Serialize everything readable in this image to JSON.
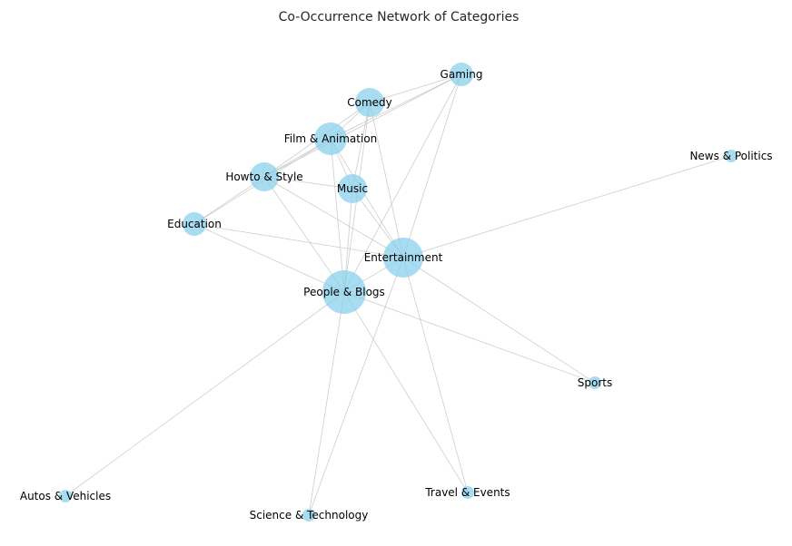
{
  "title": "Co-Occurrence Network of Categories",
  "colors": {
    "node": "#87ceeb",
    "edge": "#bdbdbd",
    "label": "#000000",
    "title": "#262626"
  },
  "chart_data": {
    "type": "network",
    "title": "Co-Occurrence Network of Categories",
    "nodes": [
      {
        "id": "gaming",
        "label": "Gaming",
        "size": 1
      },
      {
        "id": "comedy",
        "label": "Comedy",
        "size": 2
      },
      {
        "id": "film",
        "label": "Film & Animation",
        "size": 3
      },
      {
        "id": "news",
        "label": "News & Politics",
        "size": 0
      },
      {
        "id": "howto",
        "label": "Howto & Style",
        "size": 2
      },
      {
        "id": "music",
        "label": "Music",
        "size": 2
      },
      {
        "id": "education",
        "label": "Education",
        "size": 1
      },
      {
        "id": "entertainment",
        "label": "Entertainment",
        "size": 4
      },
      {
        "id": "people",
        "label": "People & Blogs",
        "size": 5
      },
      {
        "id": "sports",
        "label": "Sports",
        "size": 0
      },
      {
        "id": "autos",
        "label": "Autos & Vehicles",
        "size": 0
      },
      {
        "id": "travel",
        "label": "Travel & Events",
        "size": 0
      },
      {
        "id": "science",
        "label": "Science & Technology",
        "size": 0
      }
    ],
    "edges": [
      [
        "gaming",
        "comedy"
      ],
      [
        "gaming",
        "film"
      ],
      [
        "gaming",
        "howto"
      ],
      [
        "gaming",
        "entertainment"
      ],
      [
        "gaming",
        "people"
      ],
      [
        "comedy",
        "film"
      ],
      [
        "comedy",
        "howto"
      ],
      [
        "comedy",
        "music"
      ],
      [
        "comedy",
        "entertainment"
      ],
      [
        "comedy",
        "people"
      ],
      [
        "film",
        "howto"
      ],
      [
        "film",
        "music"
      ],
      [
        "film",
        "education"
      ],
      [
        "film",
        "entertainment"
      ],
      [
        "film",
        "people"
      ],
      [
        "howto",
        "music"
      ],
      [
        "howto",
        "education"
      ],
      [
        "howto",
        "entertainment"
      ],
      [
        "howto",
        "people"
      ],
      [
        "music",
        "entertainment"
      ],
      [
        "music",
        "people"
      ],
      [
        "education",
        "entertainment"
      ],
      [
        "education",
        "people"
      ],
      [
        "news",
        "entertainment"
      ],
      [
        "entertainment",
        "people"
      ],
      [
        "entertainment",
        "sports"
      ],
      [
        "entertainment",
        "travel"
      ],
      [
        "entertainment",
        "science"
      ],
      [
        "people",
        "sports"
      ],
      [
        "people",
        "autos"
      ],
      [
        "people",
        "travel"
      ],
      [
        "people",
        "science"
      ]
    ]
  }
}
